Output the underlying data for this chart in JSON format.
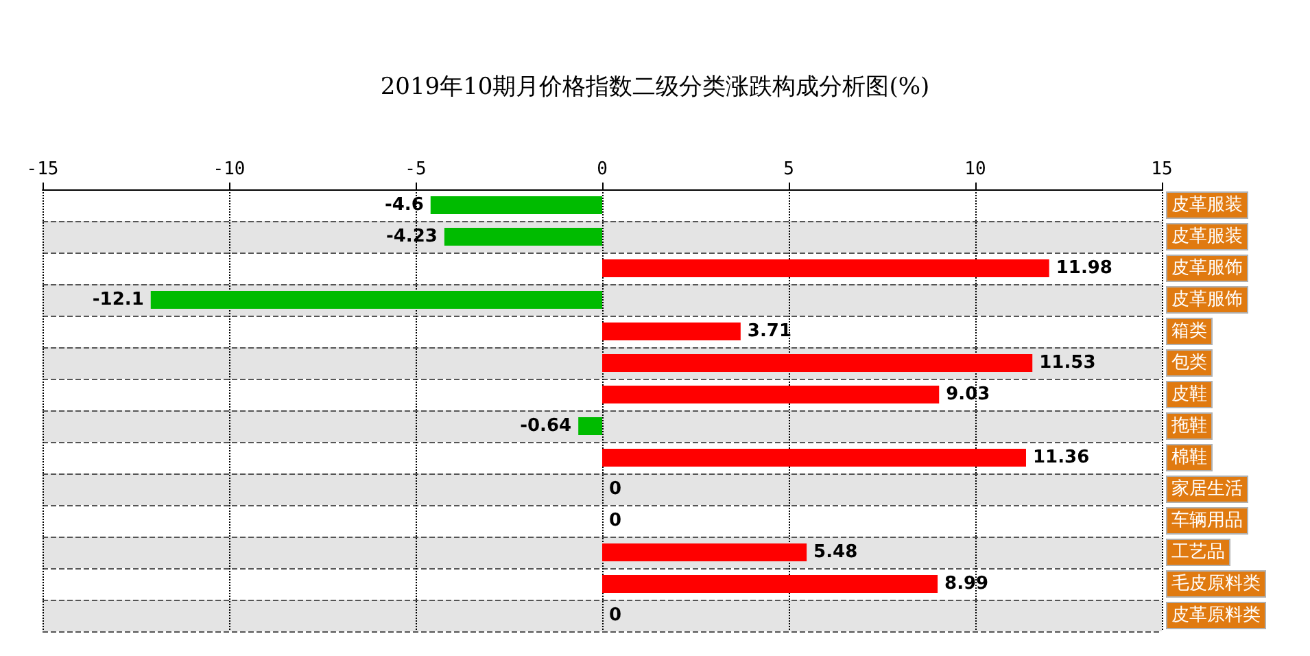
{
  "chart_data": {
    "type": "bar",
    "orientation": "horizontal",
    "title": "2019年10期月价格指数二级分类涨跌构成分析图(%)",
    "categories": [
      "皮革服装",
      "皮革服装",
      "皮革服饰",
      "皮革服饰",
      "箱类",
      "包类",
      "皮鞋",
      "拖鞋",
      "棉鞋",
      "家居生活",
      "车辆用品",
      "工艺品",
      "毛皮原料类",
      "皮革原料类"
    ],
    "values": [
      -4.6,
      -4.23,
      11.98,
      -12.1,
      3.71,
      11.53,
      9.03,
      -0.64,
      11.36,
      0,
      0,
      5.48,
      8.99,
      0
    ],
    "colors": [
      "#00bb00",
      "#00bb00",
      "#ff0000",
      "#00bb00",
      "#ff0000",
      "#ff0000",
      "#ff0000",
      "#00bb00",
      "#ff0000",
      "#ff0000",
      "#ff0000",
      "#ff0000",
      "#ff0000",
      "#ff0000"
    ],
    "xlim": [
      -15,
      15
    ],
    "xticks": [
      -15,
      -10,
      -5,
      0,
      5,
      10,
      15
    ],
    "grid": true,
    "data_labels": true
  }
}
